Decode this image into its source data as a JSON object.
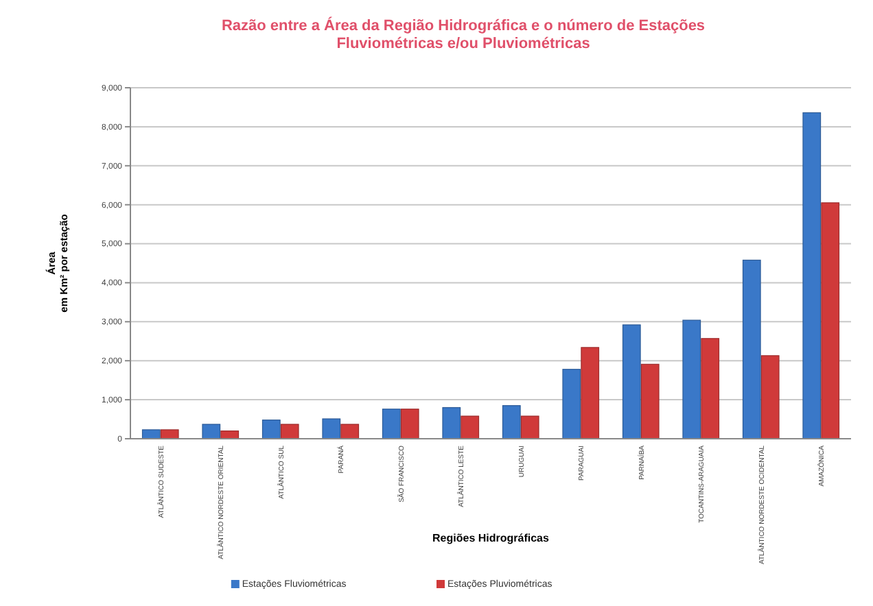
{
  "chart_data": {
    "type": "bar",
    "title": "Razão entre a Área da Região Hidrográfica e o número de Estações Fluviométricas e/ou Pluviométricas",
    "xlabel": "Regiões Hidrográficas",
    "ylabel": "Área\nem Km² por estação",
    "categories": [
      "ATLÂNTICO SUDESTE",
      "ATLÂNTICO NORDESTE ORIENTAL",
      "ATLÂNTICO SUL",
      "PARANÁ",
      "SÃO FRANCISCO",
      "ATLÂNTICO LESTE",
      "URUGUAI",
      "PARAGUAI",
      "PARNAÍBA",
      "TOCANTINS-ARAGUAIA",
      "ATLÂNTICO NORDESTE OCIDENTAL",
      "AMAZÔNICA"
    ],
    "series": [
      {
        "name": "Estações Fluviométricas",
        "color": "#3a78c8",
        "values": [
          230,
          370,
          480,
          510,
          760,
          800,
          850,
          1780,
          2920,
          3040,
          4580,
          8360
        ]
      },
      {
        "name": "Estações Pluviométricas",
        "color": "#d03a3a",
        "values": [
          230,
          200,
          370,
          370,
          760,
          580,
          580,
          2340,
          1910,
          2570,
          2130,
          6050
        ]
      }
    ],
    "ylim": [
      0,
      9000
    ],
    "yticks": [
      {
        "value": 0,
        "label": "0"
      },
      {
        "value": 1000,
        "label": "1,000"
      },
      {
        "value": 2000,
        "label": "2,000"
      },
      {
        "value": 3000,
        "label": "3,000"
      },
      {
        "value": 4000,
        "label": "4,000"
      },
      {
        "value": 5000,
        "label": "5,000"
      },
      {
        "value": 6000,
        "label": "6,000"
      },
      {
        "value": 7000,
        "label": "7,000"
      },
      {
        "value": 8000,
        "label": "8,000"
      },
      {
        "value": 9000,
        "label": "9,000"
      }
    ],
    "grid": "y",
    "legend": "bottom"
  }
}
